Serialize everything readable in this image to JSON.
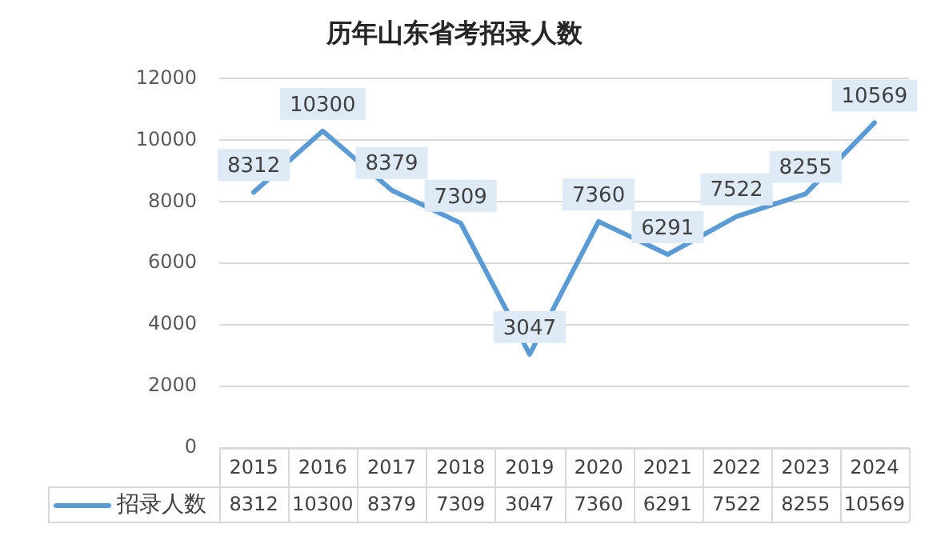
{
  "chart_data": {
    "type": "line",
    "title": "历年山东省考招录人数",
    "categories": [
      "2015",
      "2016",
      "2017",
      "2018",
      "2019",
      "2020",
      "2021",
      "2022",
      "2023",
      "2024"
    ],
    "series": [
      {
        "name": "招录人数",
        "color": "#5b9bd5",
        "values": [
          8312,
          10300,
          8379,
          7309,
          3047,
          7360,
          6291,
          7522,
          8255,
          10569
        ],
        "value_labels": [
          "8312",
          "10300",
          "8379",
          "7309",
          "3047",
          "7360",
          "6291",
          "7522",
          "8255",
          "10569"
        ]
      }
    ],
    "ylim": [
      0,
      12000
    ],
    "yticks": [
      0,
      2000,
      4000,
      6000,
      8000,
      10000,
      12000
    ],
    "annotations": [
      "8312",
      "10300",
      "8379",
      "7309",
      "3047",
      "7360",
      "6291",
      "7522",
      "8255",
      "10569"
    ],
    "grid": "y",
    "legend": "bottom",
    "line_style": "solid"
  }
}
